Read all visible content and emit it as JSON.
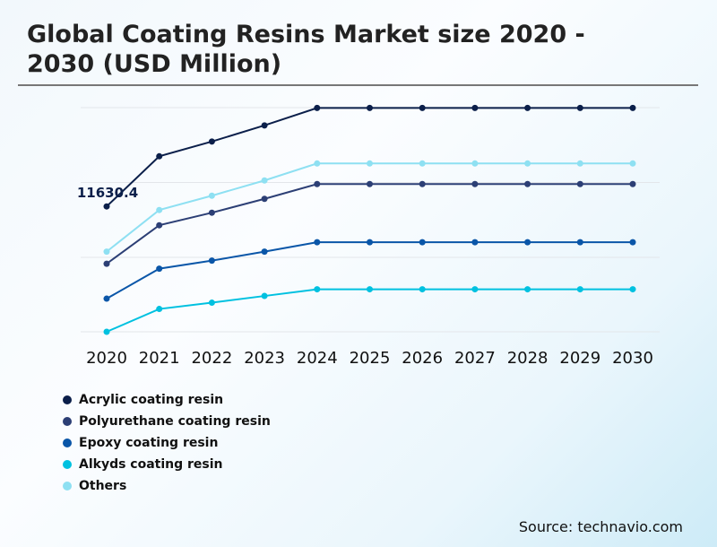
{
  "title": "Global Coating Resins Market size 2020 - 2030 (USD Million)",
  "source": "Source: technavio.com",
  "chart_data": {
    "type": "line",
    "title": "Global Coating Resins Market size 2020 - 2030 (USD Million)",
    "x": [
      "2020",
      "2021",
      "2022",
      "2023",
      "2024",
      "2025",
      "2026",
      "2027",
      "2028",
      "2029",
      "2030"
    ],
    "ylim": [
      0,
      20800
    ],
    "grid": true,
    "legend": "bottom-left",
    "annotation": {
      "series": "Acrylic coating resin",
      "x": "2020",
      "label": "11630.4"
    },
    "series": [
      {
        "name": "Acrylic coating resin",
        "color": "#0b1f4a",
        "values": [
          11630.4,
          16282,
          17653,
          19148,
          20768,
          20768,
          20768,
          20768,
          20768,
          20768,
          20768
        ]
      },
      {
        "name": "Polyurethane coating resin",
        "color": "#2c3f75",
        "values": [
          6313,
          9885,
          11048,
          12336,
          13706,
          13706,
          13706,
          13706,
          13706,
          13706,
          13706
        ]
      },
      {
        "name": "Epoxy coating resin",
        "color": "#0a56a8",
        "values": [
          3074,
          5856,
          6604,
          7435,
          8307,
          8307,
          8307,
          8307,
          8307,
          8307,
          8307
        ]
      },
      {
        "name": "Alkyds coating resin",
        "color": "#00c1e0",
        "values": [
          0,
          2118,
          2700,
          3323,
          3946,
          3946,
          3946,
          3946,
          3946,
          3946,
          3946
        ]
      },
      {
        "name": "Others",
        "color": "#8ee0f2",
        "values": [
          7435,
          11298,
          12627,
          14040,
          15617,
          15617,
          15617,
          15617,
          15617,
          15617,
          15617
        ]
      }
    ]
  }
}
